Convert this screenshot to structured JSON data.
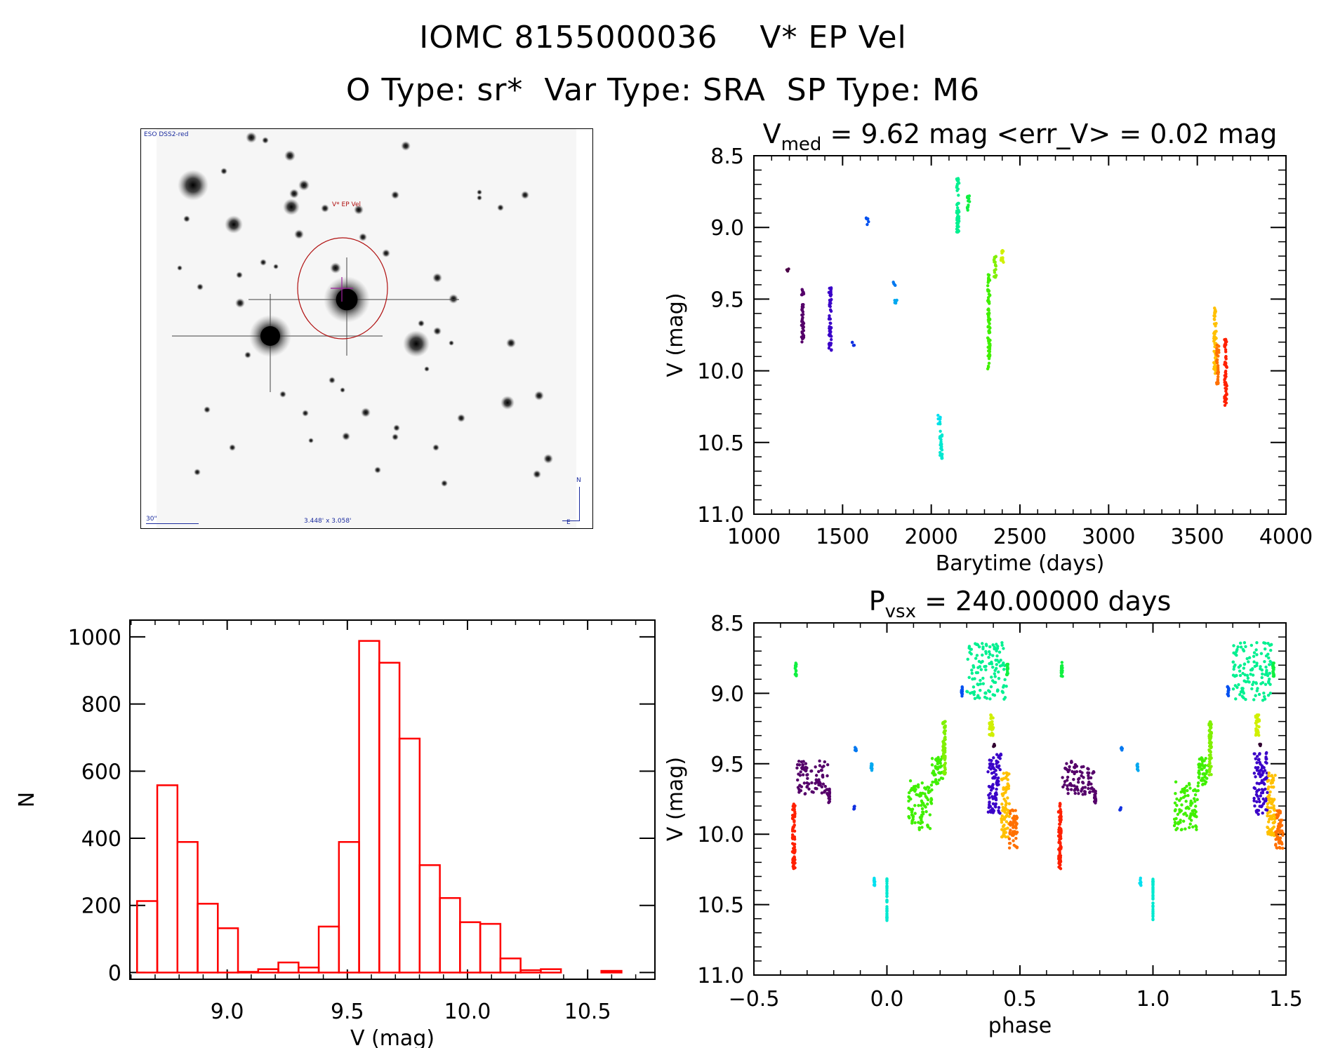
{
  "header": {
    "title_line1": "IOMC 8155000036    V* EP Vel",
    "title_line2": "O Type: sr*  Var Type: SRA  SP Type: M6"
  },
  "sky_image": {
    "survey_label": "ESO DSS2-red",
    "target_label": "V* EP Vel",
    "scale_label": "30\"",
    "fov_label": "3.448' x 3.058'",
    "north_label": "N",
    "east_label": "E",
    "colors": {
      "annotation": "#1a2b9e",
      "target_circle": "#b01010",
      "crosshair": "#a020a0"
    }
  },
  "chart_data": [
    {
      "id": "lightcurve",
      "type": "scatter",
      "title_main": "V",
      "title_sub": "med",
      "title_rest": " = 9.62 mag <err_V> = 0.02 mag",
      "xlabel": "Barytime (days)",
      "ylabel": "V (mag)",
      "xlim": [
        1000,
        4000
      ],
      "ylim": [
        11.0,
        8.5
      ],
      "y_inverted": true,
      "xticks": [
        1000,
        1500,
        2000,
        2500,
        3000,
        3500,
        4000
      ],
      "xtick_labels": [
        "1000",
        "1500",
        "2000",
        "2500",
        "3000",
        "3500",
        "4000"
      ],
      "x_minor_step": 100,
      "yticks": [
        8.5,
        9.0,
        9.5,
        10.0,
        10.5,
        11.0
      ],
      "ytick_labels": [
        "8.5",
        "9.0",
        "9.5",
        "10.0",
        "10.5",
        "11.0"
      ],
      "y_minor_step": 0.1,
      "grid": false,
      "segments": [
        {
          "x": 1190,
          "y": [
            9.29,
            9.31
          ],
          "color": "#4a0046"
        },
        {
          "x": 1275,
          "y": [
            9.41,
            9.8
          ],
          "color": "#55006a"
        },
        {
          "x": 1430,
          "y": [
            9.42,
            9.86
          ],
          "color": "#3a00c8"
        },
        {
          "x": 1560,
          "y": [
            9.8,
            9.83
          ],
          "color": "#1030e0"
        },
        {
          "x": 1640,
          "y": [
            8.93,
            8.98
          ],
          "color": "#0050f0"
        },
        {
          "x": 1790,
          "y": [
            9.38,
            9.41
          ],
          "color": "#0078f0"
        },
        {
          "x": 1800,
          "y": [
            9.5,
            9.55
          ],
          "color": "#00a8f0"
        },
        {
          "x": 2045,
          "y": [
            10.31,
            10.37
          ],
          "color": "#00e0f0"
        },
        {
          "x": 2055,
          "y": [
            10.37,
            10.62
          ],
          "color": "#00e8d0"
        },
        {
          "x": 2150,
          "y": [
            8.64,
            9.05
          ],
          "color": "#00f090"
        },
        {
          "x": 2210,
          "y": [
            8.78,
            8.88
          ],
          "color": "#10f040"
        },
        {
          "x": 2325,
          "y": [
            9.3,
            9.99
          ],
          "color": "#40f000"
        },
        {
          "x": 2360,
          "y": [
            9.2,
            9.35
          ],
          "color": "#80f000"
        },
        {
          "x": 2400,
          "y": [
            9.15,
            9.25
          ],
          "color": "#d0f000"
        },
        {
          "x": 3600,
          "y": [
            9.56,
            10.02
          ],
          "color": "#ffc000"
        },
        {
          "x": 3615,
          "y": [
            9.82,
            10.1
          ],
          "color": "#ff7000"
        },
        {
          "x": 3660,
          "y": [
            9.78,
            10.25
          ],
          "color": "#ff2000"
        }
      ]
    },
    {
      "id": "histogram",
      "type": "bar",
      "xlabel": "V (mag)",
      "ylabel": "N",
      "xlim": [
        8.595,
        10.78
      ],
      "ylim": [
        -20,
        1050
      ],
      "xticks": [
        9.0,
        9.5,
        10.0,
        10.5
      ],
      "xtick_labels": [
        "9.0",
        "9.5",
        "10.0",
        "10.5"
      ],
      "x_minor_step": 0.1,
      "yticks": [
        0,
        200,
        400,
        600,
        800,
        1000
      ],
      "ytick_labels": [
        "0",
        "200",
        "400",
        "600",
        "800",
        "1000"
      ],
      "bar_color": "#ff0000",
      "bin_width": 0.084,
      "bin_start": 8.625,
      "values": [
        213,
        558,
        389,
        205,
        132,
        2,
        10,
        30,
        15,
        137,
        389,
        988,
        923,
        697,
        320,
        222,
        150,
        145,
        42,
        7,
        10,
        0,
        0,
        5
      ]
    },
    {
      "id": "phased",
      "type": "scatter",
      "title_main": "P",
      "title_sub": "vsx",
      "title_rest": " = 240.00000 days",
      "xlabel": "phase",
      "ylabel": "V (mag)",
      "xlim": [
        -0.5,
        1.5
      ],
      "ylim": [
        11.0,
        8.5
      ],
      "y_inverted": true,
      "xticks": [
        -0.5,
        0.0,
        0.5,
        1.0,
        1.5
      ],
      "xtick_labels": [
        "−0.5",
        "0.0",
        "0.5",
        "1.0",
        "1.5"
      ],
      "x_minor_step": 0.1,
      "yticks": [
        8.5,
        9.0,
        9.5,
        10.0,
        10.5,
        11.0
      ],
      "ytick_labels": [
        "8.5",
        "9.0",
        "9.5",
        "10.0",
        "10.5",
        "11.0"
      ],
      "y_minor_step": 0.1,
      "grid": false,
      "period_days": 240.0,
      "segments": [
        {
          "x0": -0.355,
          "x1": -0.345,
          "y0": 9.78,
          "y1": 10.25,
          "color": "#ff2000"
        },
        {
          "x0": -0.345,
          "x1": -0.34,
          "y0": 8.78,
          "y1": 8.88,
          "color": "#10f040"
        },
        {
          "x0": -0.34,
          "x1": -0.22,
          "y0": 9.48,
          "y1": 9.72,
          "color": "#55006a"
        },
        {
          "x0": -0.22,
          "x1": -0.215,
          "y0": 9.68,
          "y1": 9.78,
          "color": "#55006a"
        },
        {
          "x0": -0.12,
          "x1": -0.115,
          "y0": 9.38,
          "y1": 9.41,
          "color": "#0078f0"
        },
        {
          "x0": -0.125,
          "x1": -0.12,
          "y0": 9.8,
          "y1": 9.83,
          "color": "#1030e0"
        },
        {
          "x0": -0.06,
          "x1": -0.055,
          "y0": 9.5,
          "y1": 9.55,
          "color": "#00a8f0"
        },
        {
          "x0": -0.05,
          "x1": -0.045,
          "y0": 10.31,
          "y1": 10.37,
          "color": "#00e0f0"
        },
        {
          "x0": 0.0,
          "x1": 0.0,
          "y0": 10.31,
          "y1": 10.62,
          "color": "#00e8d0"
        },
        {
          "x0": 0.08,
          "x1": 0.17,
          "y0": 9.62,
          "y1": 9.97,
          "color": "#40f000"
        },
        {
          "x0": 0.17,
          "x1": 0.21,
          "y0": 9.45,
          "y1": 9.65,
          "color": "#40f000"
        },
        {
          "x0": 0.21,
          "x1": 0.22,
          "y0": 9.2,
          "y1": 9.58,
          "color": "#80f000"
        },
        {
          "x0": 0.28,
          "x1": 0.285,
          "y0": 8.95,
          "y1": 9.02,
          "color": "#0050f0"
        },
        {
          "x0": 0.3,
          "x1": 0.45,
          "y0": 8.64,
          "y1": 9.05,
          "color": "#00f090"
        },
        {
          "x0": 0.45,
          "x1": 0.455,
          "y0": 8.78,
          "y1": 8.88,
          "color": "#10f040"
        },
        {
          "x0": 0.385,
          "x1": 0.4,
          "y0": 9.15,
          "y1": 9.3,
          "color": "#d0f000"
        },
        {
          "x0": 0.4,
          "x1": 0.405,
          "y0": 9.36,
          "y1": 9.38,
          "color": "#300030"
        },
        {
          "x0": 0.38,
          "x1": 0.43,
          "y0": 9.42,
          "y1": 9.86,
          "color": "#3a00c8"
        },
        {
          "x0": 0.43,
          "x1": 0.46,
          "y0": 9.56,
          "y1": 10.02,
          "color": "#ffc000"
        },
        {
          "x0": 0.46,
          "x1": 0.49,
          "y0": 9.82,
          "y1": 10.1,
          "color": "#ff7000"
        }
      ]
    }
  ]
}
